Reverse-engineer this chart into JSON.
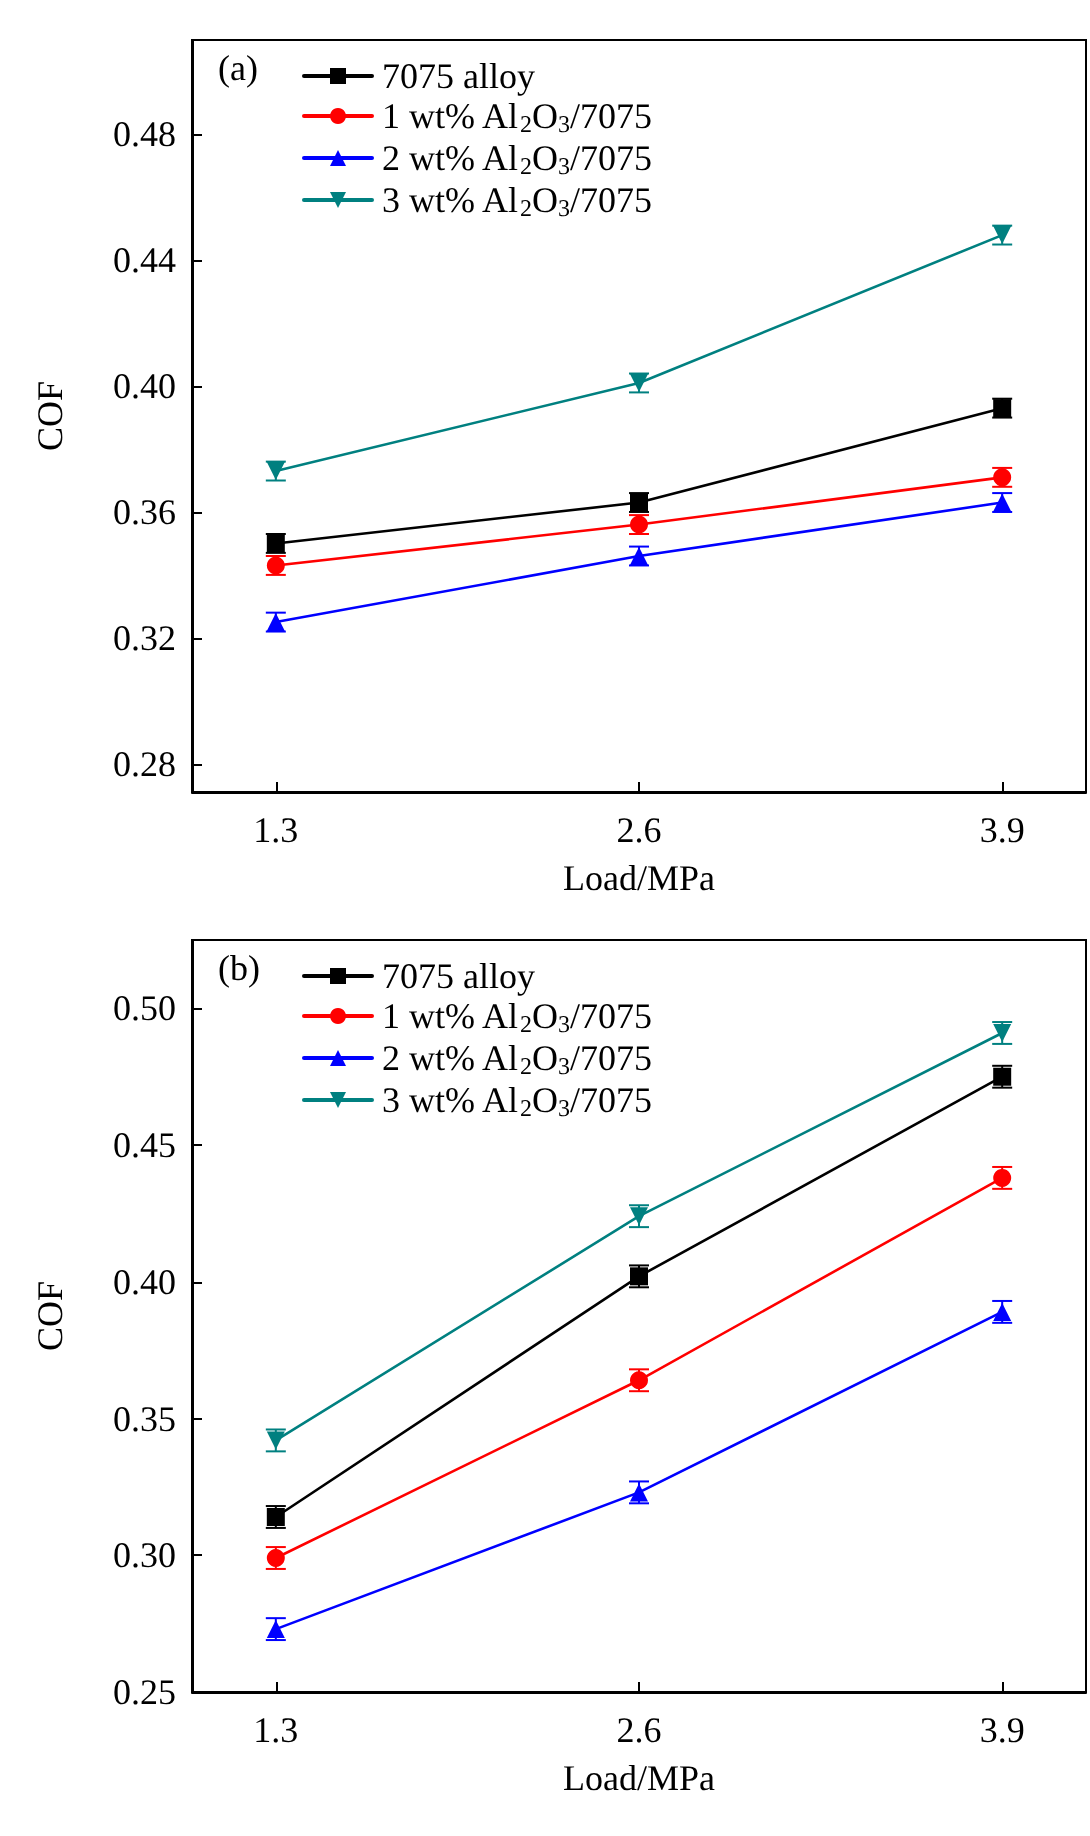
{
  "chart_data": [
    {
      "type": "line",
      "title": "(a)",
      "xlabel": "Load/MPa",
      "ylabel": "COF",
      "x": [
        1.3,
        2.6,
        3.9
      ],
      "xlim": [
        1.0,
        4.2
      ],
      "xticks": [
        1.3,
        2.6,
        3.9
      ],
      "ylim": [
        0.271,
        0.51
      ],
      "yticks": [
        0.28,
        0.32,
        0.36,
        {
          "value": 0.4,
          "label": "0.40"
        },
        0.44,
        0.48
      ],
      "grid": false,
      "legend": "top left",
      "line_style": "solid",
      "series": [
        {
          "name": "7075 alloy",
          "color": "#000000",
          "marker": "square",
          "values": [
            0.35,
            0.363,
            0.393
          ],
          "errors": [
            0.003,
            0.003,
            0.003
          ]
        },
        {
          "name": "1 wt% Al$_{2}$O$_{3}$/7075",
          "color": "#ff0000",
          "marker": "circle",
          "values": [
            0.343,
            0.356,
            0.371
          ],
          "errors": [
            0.003,
            0.003,
            0.003
          ]
        },
        {
          "name": "2 wt% Al$_{2}$O$_{3}$/7075",
          "color": "#0000ff",
          "marker": "triangle",
          "values": [
            0.325,
            0.346,
            0.363
          ],
          "errors": [
            0.003,
            0.003,
            0.003
          ]
        },
        {
          "name": "3 wt% Al$_{2}$O$_{3}$/7075",
          "color": "#008080",
          "marker": "triangle-down",
          "values": [
            0.373,
            0.401,
            0.448
          ],
          "errors": [
            0.003,
            0.003,
            0.003
          ]
        }
      ]
    },
    {
      "type": "line",
      "title": "(b)",
      "xlabel": "Load/MPa",
      "ylabel": "COF",
      "x": [
        1.3,
        2.6,
        3.9
      ],
      "xlim": [
        1.0,
        4.2
      ],
      "xticks": [
        1.3,
        2.6,
        3.9
      ],
      "ylim": [
        0.25,
        0.525
      ],
      "yticks": [
        0.25,
        {
          "value": 0.3,
          "label": "0.30"
        },
        0.35,
        {
          "value": 0.4,
          "label": "0.40"
        },
        0.45,
        {
          "value": 0.5,
          "label": "0.50"
        }
      ],
      "grid": false,
      "legend": "top left",
      "line_style": "solid",
      "series": [
        {
          "name": "7075 alloy",
          "color": "#000000",
          "marker": "square",
          "values": [
            0.314,
            0.402,
            0.475
          ],
          "errors": [
            0.004,
            0.004,
            0.004
          ]
        },
        {
          "name": "1 wt% Al$_{2}$O$_{3}$/7075",
          "color": "#ff0000",
          "marker": "circle",
          "values": [
            0.299,
            0.364,
            0.438
          ],
          "errors": [
            0.004,
            0.004,
            0.004
          ]
        },
        {
          "name": "2 wt% Al$_{2}$O$_{3}$/7075",
          "color": "#0000ff",
          "marker": "triangle",
          "values": [
            0.273,
            0.323,
            0.389
          ],
          "errors": [
            0.004,
            0.004,
            0.004
          ]
        },
        {
          "name": "3 wt% Al$_{2}$O$_{3}$/7075",
          "color": "#008080",
          "marker": "triangle-down",
          "values": [
            0.342,
            0.424,
            0.491
          ],
          "errors": [
            0.004,
            0.004,
            0.004
          ]
        }
      ]
    }
  ]
}
